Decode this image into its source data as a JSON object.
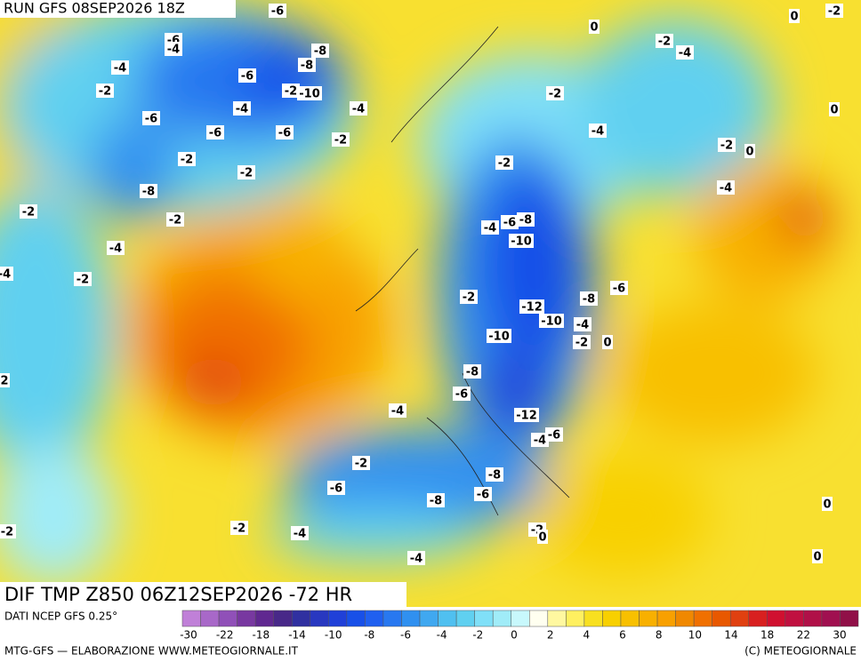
{
  "header": {
    "run": "RUN GFS 08SEP2026 18Z"
  },
  "map": {
    "title": "DIF TMP Z850 06Z12SEP2026 -72 HR",
    "contour_labels": [
      -6,
      -6,
      -4,
      -8,
      -4,
      -6,
      -8,
      -2,
      -10,
      -2,
      -4,
      -4,
      -6,
      -6,
      -6,
      -2,
      -2,
      -2,
      -8,
      -2,
      -2,
      -4,
      -2,
      -4,
      -2,
      0,
      -2,
      -4,
      0,
      -2,
      -4,
      -2,
      0,
      0,
      -2,
      -4,
      -6,
      -8,
      -4,
      -10,
      -2,
      -12,
      -8,
      -6,
      -10,
      -4,
      -2,
      0,
      -10,
      -8,
      -6,
      -4,
      -12,
      -4,
      -6,
      -2,
      -6,
      -8,
      -6,
      -8,
      -2,
      -4,
      -2,
      0,
      -4,
      0,
      0,
      -2,
      2
    ]
  },
  "legend": {
    "source": "DATI NCEP GFS 0.25°",
    "ticks": [
      -30,
      -22,
      -18,
      -14,
      -10,
      -8,
      -6,
      -4,
      -2,
      0,
      2,
      4,
      6,
      8,
      10,
      14,
      18,
      22,
      30
    ],
    "colors": [
      "#c080d8",
      "#a868c8",
      "#9050b8",
      "#7838a0",
      "#602890",
      "#482888",
      "#3030a0",
      "#2838c0",
      "#2040d8",
      "#1850e8",
      "#2060f0",
      "#2878f0",
      "#3090f0",
      "#40a8f0",
      "#50c0f0",
      "#60d0f0",
      "#80e0f8",
      "#a0ecf8",
      "#c8f8fc",
      "#fffff0",
      "#fff8a0",
      "#fff060",
      "#f8e020",
      "#f8d000",
      "#f8c000",
      "#f8b000",
      "#f8a000",
      "#f08800",
      "#f07000",
      "#e85800",
      "#e04010",
      "#d82020",
      "#d01030",
      "#c01040",
      "#b01048",
      "#a01050",
      "#901048"
    ]
  },
  "footer": {
    "credit": "MTG-GFS — ELABORAZIONE WWW.METEOGIORNALE.IT",
    "copyright": "(C) METEOGIORNALE"
  }
}
